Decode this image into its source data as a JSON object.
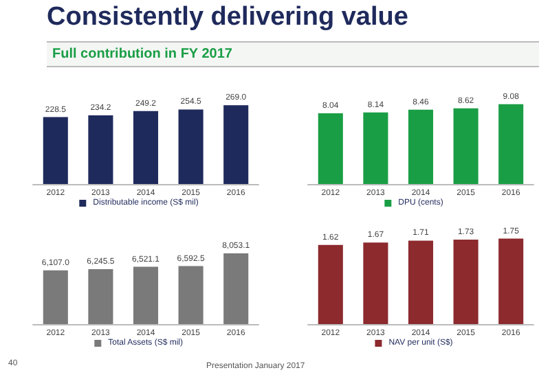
{
  "chart_data": [
    {
      "type": "bar",
      "title": "Consistently delivering value",
      "subtitle": "Full contribution in FY 2017",
      "annotations": [
        "40",
        "Presentation January 2017"
      ],
      "categories": [
        "2012",
        "2013",
        "2014",
        "2015",
        "2016"
      ],
      "legend": "bottom",
      "series": [
        {
          "name": "Distributable income (S$ mil)",
          "color": "#1f2a5c",
          "values": [
            228.5,
            234.2,
            249.2,
            254.5,
            269.0
          ],
          "value_labels": [
            "228.5",
            "234.2",
            "249.2",
            "254.5",
            "269.0"
          ]
        }
      ]
    },
    {
      "type": "bar",
      "categories": [
        "2012",
        "2013",
        "2014",
        "2015",
        "2016"
      ],
      "legend": "bottom",
      "data_labels": true,
      "series": [
        {
          "name": "DPU (cents)",
          "color": "#1a9e45",
          "values": [
            8.04,
            8.14,
            8.46,
            8.62,
            9.08
          ]
        }
      ]
    },
    {
      "type": "bar",
      "categories": [
        "2012",
        "2013",
        "2014",
        "2015",
        "2016"
      ],
      "legend": "bottom",
      "series": [
        {
          "name": "Total Assets (S$ mil)",
          "color": "#7a7a7a",
          "values": [
            6107.0,
            6245.5,
            6521.1,
            6592.5,
            8053.1
          ],
          "value_labels": [
            "6,107.0",
            "6,245.5",
            "6,521.1",
            "6,592.5",
            "8,053.1"
          ]
        }
      ]
    },
    {
      "type": "bar",
      "categories": [
        "2012",
        "2013",
        "2014",
        "2015",
        "2016"
      ],
      "legend": "bottom",
      "data_labels": true,
      "series": [
        {
          "name": "NAV per unit (S$)",
          "color": "#8c2a2e",
          "values": [
            1.62,
            1.67,
            1.71,
            1.73,
            1.75
          ]
        }
      ]
    }
  ]
}
